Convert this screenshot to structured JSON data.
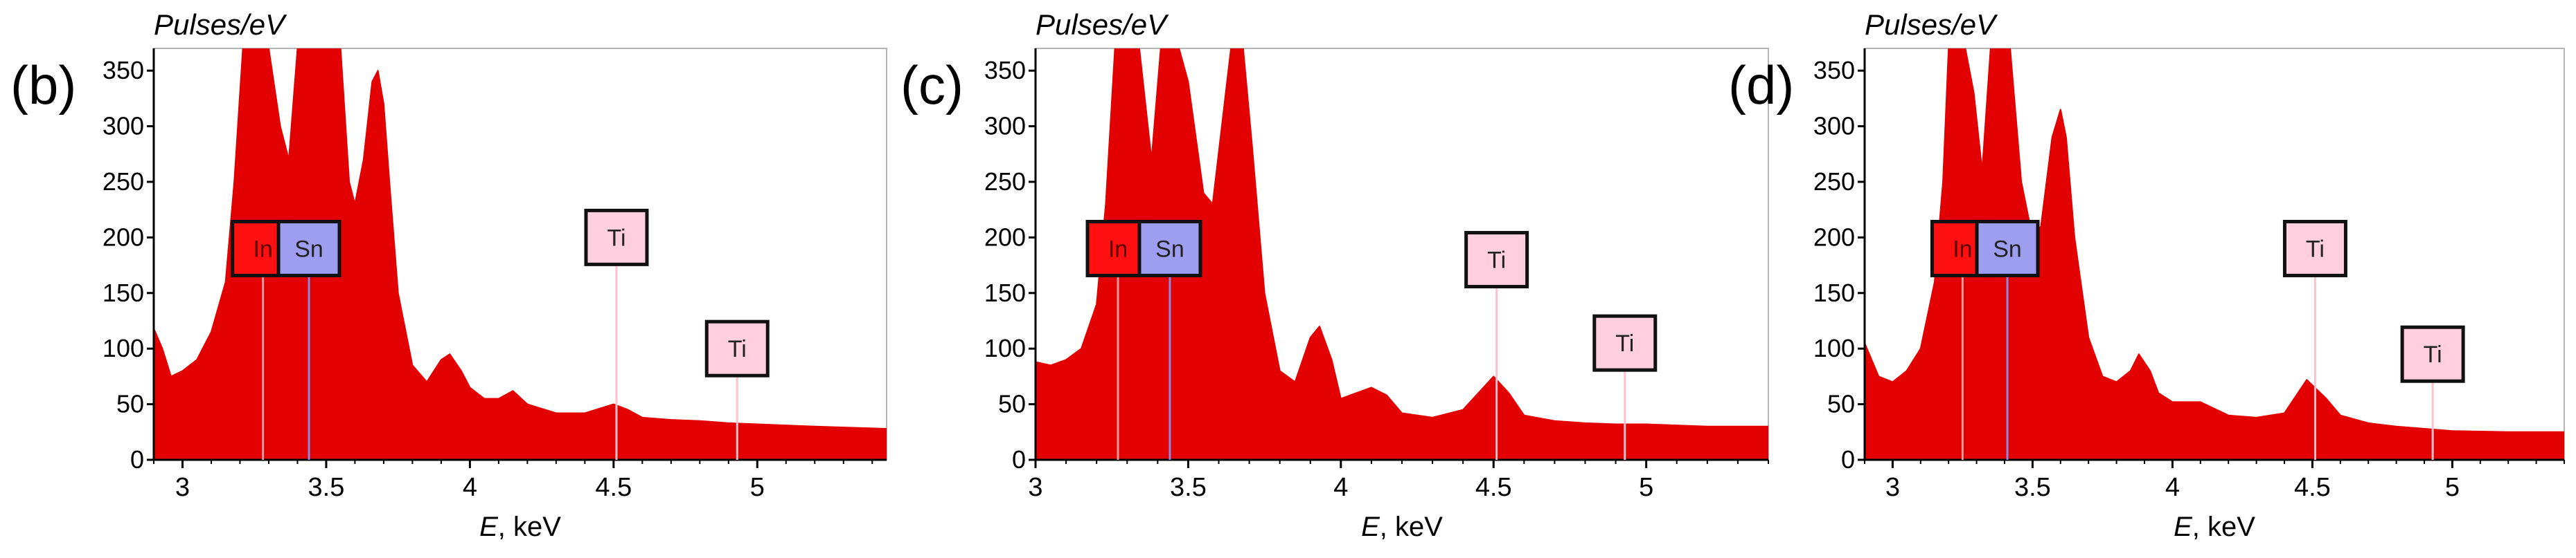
{
  "colors": {
    "spectrum_fill": "#e30000",
    "in_label_bg": "#ff1010",
    "sn_label_bg": "#9e9ef0",
    "ti_label_bg": "#ffcfe0",
    "in_line": "#ff9a9a",
    "sn_line": "#8a8ae6",
    "ti_line": "#ffc0d0",
    "axis": "#000000",
    "plot_border": "#b4b4b4"
  },
  "chart_data": [
    {
      "panel_label": "(b)",
      "type": "area",
      "title": "",
      "ylabel": "Pulses/eV",
      "xlabel_var": "E",
      "xlabel_unit": ", keV",
      "xlim": [
        2.9,
        5.45
      ],
      "ylim": [
        0,
        370
      ],
      "xticks": [
        "3",
        "3.5",
        "4",
        "4.5",
        "5"
      ],
      "yticks": [
        "0",
        "50",
        "100",
        "150",
        "200",
        "250",
        "300",
        "350"
      ],
      "grid": false,
      "series": [
        {
          "x": [
            2.9,
            2.93,
            2.96,
            3.0,
            3.05,
            3.1,
            3.15,
            3.18,
            3.21,
            3.23,
            3.26,
            3.3,
            3.34,
            3.37,
            3.4,
            3.43,
            3.45,
            3.5,
            3.55,
            3.58,
            3.6,
            3.63,
            3.66,
            3.68,
            3.7,
            3.72,
            3.75,
            3.8,
            3.85,
            3.9,
            3.93,
            3.97,
            4.0,
            4.05,
            4.1,
            4.15,
            4.2,
            4.3,
            4.4,
            4.5,
            4.55,
            4.6,
            4.7,
            4.8,
            4.9,
            5.0,
            5.2,
            5.45
          ],
          "y": [
            118,
            100,
            75,
            80,
            90,
            115,
            160,
            250,
            370,
            370,
            370,
            370,
            300,
            270,
            370,
            370,
            370,
            370,
            370,
            250,
            230,
            270,
            340,
            350,
            320,
            250,
            150,
            85,
            70,
            90,
            95,
            80,
            65,
            55,
            55,
            62,
            50,
            42,
            42,
            50,
            45,
            38,
            36,
            35,
            33,
            32,
            30,
            28
          ]
        }
      ],
      "markers": [
        {
          "element": "In",
          "x": 3.28,
          "label_y": 190,
          "type": "In"
        },
        {
          "element": "Sn",
          "x": 3.44,
          "label_y": 190,
          "type": "Sn"
        },
        {
          "element": "Ti",
          "x": 4.51,
          "label_y": 200,
          "type": "Ti"
        },
        {
          "element": "Ti",
          "x": 4.93,
          "label_y": 100,
          "type": "Ti"
        }
      ]
    },
    {
      "panel_label": "(c)",
      "type": "area",
      "title": "",
      "ylabel": "Pulses/eV",
      "xlabel_var": "E",
      "xlabel_unit": ", keV",
      "xlim": [
        3.0,
        5.4
      ],
      "ylim": [
        0,
        370
      ],
      "xticks": [
        "3",
        "3.5",
        "4",
        "4.5",
        "5"
      ],
      "yticks": [
        "0",
        "50",
        "100",
        "150",
        "200",
        "250",
        "300",
        "350"
      ],
      "grid": false,
      "series": [
        {
          "x": [
            3.0,
            3.05,
            3.1,
            3.15,
            3.2,
            3.23,
            3.26,
            3.3,
            3.34,
            3.38,
            3.41,
            3.44,
            3.47,
            3.5,
            3.55,
            3.58,
            3.61,
            3.64,
            3.66,
            3.68,
            3.71,
            3.75,
            3.8,
            3.85,
            3.9,
            3.93,
            3.97,
            4.0,
            4.05,
            4.1,
            4.15,
            4.2,
            4.3,
            4.4,
            4.5,
            4.55,
            4.6,
            4.7,
            4.8,
            4.9,
            5.0,
            5.2,
            5.4
          ],
          "y": [
            88,
            85,
            90,
            100,
            140,
            230,
            370,
            370,
            370,
            270,
            370,
            370,
            370,
            340,
            240,
            230,
            300,
            370,
            370,
            370,
            280,
            150,
            80,
            70,
            110,
            120,
            90,
            55,
            60,
            65,
            58,
            42,
            38,
            45,
            75,
            60,
            40,
            35,
            33,
            32,
            32,
            30,
            30
          ]
        }
      ],
      "markers": [
        {
          "element": "In",
          "x": 3.27,
          "label_y": 190,
          "type": "In"
        },
        {
          "element": "Sn",
          "x": 3.44,
          "label_y": 190,
          "type": "Sn"
        },
        {
          "element": "Ti",
          "x": 4.51,
          "label_y": 180,
          "type": "Ti"
        },
        {
          "element": "Ti",
          "x": 4.93,
          "label_y": 105,
          "type": "Ti"
        }
      ]
    },
    {
      "panel_label": "(d)",
      "type": "area",
      "title": "",
      "ylabel": "Pulses/eV",
      "xlabel_var": "E",
      "xlabel_unit": ", keV",
      "xlim": [
        2.9,
        5.4
      ],
      "ylim": [
        0,
        370
      ],
      "xticks": [
        "3",
        "3.5",
        "4",
        "4.5",
        "5"
      ],
      "yticks": [
        "0",
        "50",
        "100",
        "150",
        "200",
        "250",
        "300",
        "350"
      ],
      "grid": false,
      "series": [
        {
          "x": [
            2.9,
            2.95,
            3.0,
            3.05,
            3.1,
            3.15,
            3.18,
            3.2,
            3.23,
            3.26,
            3.29,
            3.32,
            3.35,
            3.38,
            3.42,
            3.46,
            3.5,
            3.53,
            3.57,
            3.6,
            3.62,
            3.65,
            3.7,
            3.75,
            3.8,
            3.85,
            3.88,
            3.92,
            3.95,
            4.0,
            4.1,
            4.2,
            4.3,
            4.4,
            4.48,
            4.55,
            4.6,
            4.7,
            4.8,
            4.9,
            5.0,
            5.2,
            5.4
          ],
          "y": [
            105,
            75,
            70,
            80,
            100,
            160,
            250,
            370,
            370,
            370,
            330,
            260,
            370,
            370,
            370,
            250,
            200,
            210,
            290,
            315,
            290,
            200,
            110,
            75,
            70,
            80,
            95,
            80,
            60,
            52,
            52,
            40,
            38,
            42,
            72,
            55,
            40,
            33,
            30,
            28,
            26,
            25,
            25
          ]
        }
      ],
      "markers": [
        {
          "element": "In",
          "x": 3.25,
          "label_y": 190,
          "type": "In"
        },
        {
          "element": "Sn",
          "x": 3.41,
          "label_y": 190,
          "type": "Sn"
        },
        {
          "element": "Ti",
          "x": 4.51,
          "label_y": 190,
          "type": "Ti"
        },
        {
          "element": "Ti",
          "x": 4.93,
          "label_y": 95,
          "type": "Ti"
        }
      ]
    }
  ]
}
